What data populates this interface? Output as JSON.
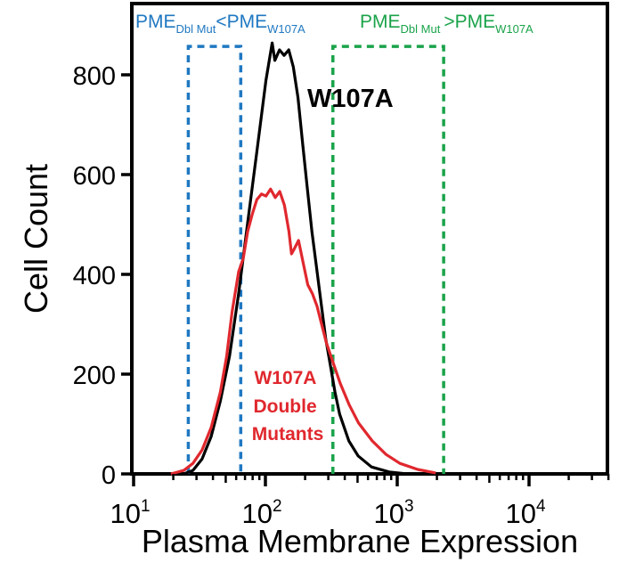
{
  "chart_data": {
    "type": "line",
    "subtype": "flow-cytometry-histogram",
    "title": "",
    "xlabel": "Plasma Membrane Expression",
    "ylabel": "Cell Count",
    "xscale": "log",
    "xlim": [
      10,
      40000
    ],
    "ylim": [
      0,
      940
    ],
    "x_ticks": [
      {
        "value": 10,
        "base": "10",
        "exp": "1"
      },
      {
        "value": 100,
        "base": "10",
        "exp": "2"
      },
      {
        "value": 1000,
        "base": "10",
        "exp": "3"
      },
      {
        "value": 10000,
        "base": "10",
        "exp": "4"
      }
    ],
    "y_ticks": [
      0,
      200,
      400,
      600,
      800
    ],
    "grid": false,
    "series": [
      {
        "name": "W107A",
        "label": "W107A",
        "color": "#000000",
        "points": [
          [
            24.0,
            0
          ],
          [
            28.2,
            7
          ],
          [
            33.1,
            30
          ],
          [
            38.8,
            75
          ],
          [
            45.5,
            146
          ],
          [
            53.4,
            236
          ],
          [
            62.6,
            361
          ],
          [
            73.4,
            504
          ],
          [
            86.1,
            646
          ],
          [
            101.0,
            789
          ],
          [
            112.6,
            864
          ],
          [
            117.9,
            829
          ],
          [
            127.8,
            850
          ],
          [
            138.6,
            839
          ],
          [
            150.3,
            850
          ],
          [
            162.8,
            816
          ],
          [
            176.6,
            754
          ],
          [
            191.4,
            664
          ],
          [
            207.6,
            575
          ],
          [
            225.1,
            486
          ],
          [
            244.1,
            414
          ],
          [
            264.6,
            343
          ],
          [
            286.8,
            271
          ],
          [
            311.0,
            218
          ],
          [
            337.2,
            164
          ],
          [
            365.6,
            120
          ],
          [
            429.8,
            66
          ],
          [
            505.3,
            36
          ],
          [
            637.9,
            14
          ],
          [
            868.0,
            4
          ],
          [
            1181.2,
            0
          ]
        ]
      },
      {
        "name": "W107A Double Mutants",
        "label_lines": [
          "W107A",
          "Double",
          "Mutants"
        ],
        "color": "#e0282e",
        "points": [
          [
            19.2,
            0
          ],
          [
            24.0,
            7
          ],
          [
            28.2,
            21
          ],
          [
            33.1,
            48
          ],
          [
            38.8,
            93
          ],
          [
            45.5,
            164
          ],
          [
            50.8,
            236
          ],
          [
            55.9,
            325
          ],
          [
            62.6,
            405
          ],
          [
            67.9,
            432
          ],
          [
            73.4,
            486
          ],
          [
            79.6,
            521
          ],
          [
            86.1,
            550
          ],
          [
            93.4,
            561
          ],
          [
            101.0,
            557
          ],
          [
            109.5,
            571
          ],
          [
            118.6,
            554
          ],
          [
            128.5,
            566
          ],
          [
            139.3,
            539
          ],
          [
            150.9,
            486
          ],
          [
            157.7,
            441
          ],
          [
            164.9,
            450
          ],
          [
            178.5,
            468
          ],
          [
            193.5,
            423
          ],
          [
            209.8,
            379
          ],
          [
            227.4,
            361
          ],
          [
            246.4,
            336
          ],
          [
            267.1,
            300
          ],
          [
            289.5,
            264
          ],
          [
            313.8,
            236
          ],
          [
            368.6,
            182
          ],
          [
            433.1,
            138
          ],
          [
            508.9,
            102
          ],
          [
            647.0,
            66
          ],
          [
            822.7,
            39
          ],
          [
            1047.3,
            21
          ],
          [
            1430.0,
            9
          ],
          [
            1958.0,
            2
          ]
        ]
      }
    ],
    "gates": [
      {
        "name": "low-gate",
        "label_main_left": "PME",
        "label_sub_left": "Dbl Mut",
        "label_operator": "<",
        "label_main_right": "PME",
        "label_sub_right": "W107A",
        "color": "#1f78c1",
        "x_range": [
          26,
          65
        ],
        "y_top": 857
      },
      {
        "name": "high-gate",
        "label_main_left": "PME",
        "label_sub_left": "Dbl Mut",
        "label_operator": ">",
        "label_main_right": "PME",
        "label_sub_right": "W107A",
        "color": "#1aa34a",
        "x_range": [
          325,
          2250
        ],
        "y_top": 857
      }
    ],
    "annotations": [
      {
        "text": "W107A",
        "series": "W107A",
        "color": "#000000"
      },
      {
        "text_lines": [
          "W107A",
          "Double",
          "Mutants"
        ],
        "series": "W107A Double Mutants",
        "color": "#e0282e"
      }
    ]
  }
}
